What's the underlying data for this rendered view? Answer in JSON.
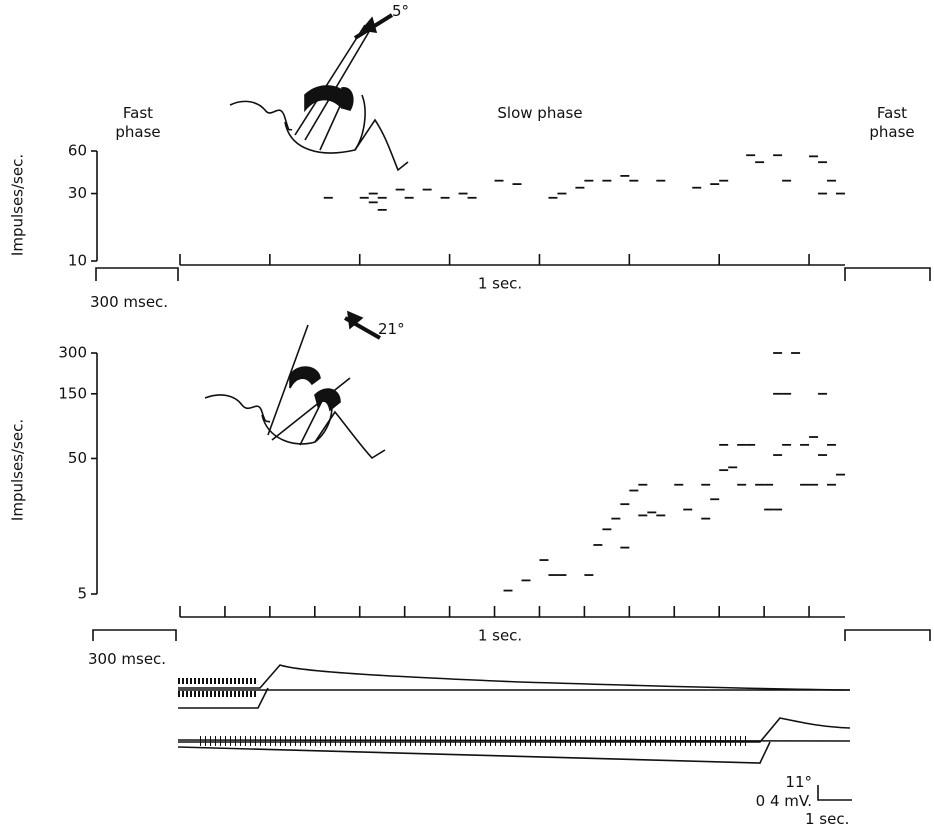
{
  "chart_data": [
    {
      "type": "scatter",
      "ylabel": "Impulses/sec.",
      "xlabel": "1 sec.",
      "log_y": true,
      "color": "#111111",
      "ylim": [
        10,
        60
      ],
      "yticks": [
        10,
        30,
        60
      ],
      "xlim": [
        0,
        0.74
      ],
      "xticks": [
        0,
        0.1,
        0.2,
        0.3,
        0.4,
        0.5,
        0.6,
        0.7
      ],
      "x": [
        0.16,
        0.2,
        0.21,
        0.22,
        0.21,
        0.24,
        0.22,
        0.25,
        0.27,
        0.29,
        0.31,
        0.32,
        0.35,
        0.37,
        0.41,
        0.42,
        0.44,
        0.45,
        0.47,
        0.49,
        0.5,
        0.53,
        0.57,
        0.59,
        0.6,
        0.63,
        0.64,
        0.66,
        0.67,
        0.7,
        0.71,
        0.71,
        0.72,
        0.73
      ],
      "values": [
        28,
        28,
        26,
        23,
        30,
        32,
        28,
        28,
        32,
        28,
        30,
        28,
        37,
        35,
        28,
        30,
        33,
        37,
        37,
        40,
        37,
        37,
        33,
        35,
        37,
        56,
        50,
        56,
        37,
        55,
        30,
        50,
        37,
        30
      ]
    },
    {
      "type": "scatter",
      "ylabel": "Impulses/sec.",
      "xlabel": "1 sec.",
      "log_y": true,
      "color": "#111111",
      "ylim": [
        5,
        300
      ],
      "yticks": [
        5,
        50,
        150,
        300
      ],
      "xlim": [
        0,
        0.74
      ],
      "xticks": [
        0,
        0.05,
        0.1,
        0.15,
        0.2,
        0.25,
        0.3,
        0.35,
        0.4,
        0.45,
        0.5,
        0.55,
        0.6,
        0.65,
        0.7
      ],
      "x": [
        0.36,
        0.38,
        0.4,
        0.41,
        0.42,
        0.45,
        0.46,
        0.47,
        0.48,
        0.49,
        0.49,
        0.5,
        0.51,
        0.51,
        0.52,
        0.53,
        0.58,
        0.58,
        0.59,
        0.6,
        0.6,
        0.61,
        0.62,
        0.62,
        0.65,
        0.65,
        0.66,
        0.66,
        0.67,
        0.67,
        0.68,
        0.69,
        0.69,
        0.7,
        0.7,
        0.71,
        0.71,
        0.72,
        0.72,
        0.73,
        0.66,
        0.66,
        0.64,
        0.63,
        0.56,
        0.55
      ],
      "values": [
        5.3,
        6.3,
        8.9,
        6.9,
        6.9,
        6.9,
        11.5,
        15,
        18,
        23,
        11,
        29,
        32,
        19,
        20,
        19,
        18,
        32,
        25,
        41,
        63,
        43,
        63,
        32,
        32,
        21,
        53,
        21,
        63,
        150,
        300,
        63,
        32,
        72,
        32,
        150,
        53,
        63,
        32,
        38,
        150,
        300,
        32,
        63,
        21,
        32
      ]
    }
  ],
  "phase_labels": [
    "Fast phase",
    "Slow phase",
    "Fast phase"
  ],
  "angle_labels": [
    "5°",
    "21°"
  ],
  "time_scale_labels": [
    "300 msec.",
    "300 msec."
  ],
  "calibration": {
    "angle": "11°",
    "voltage": "0 4 mV.",
    "time": "1 sec."
  }
}
